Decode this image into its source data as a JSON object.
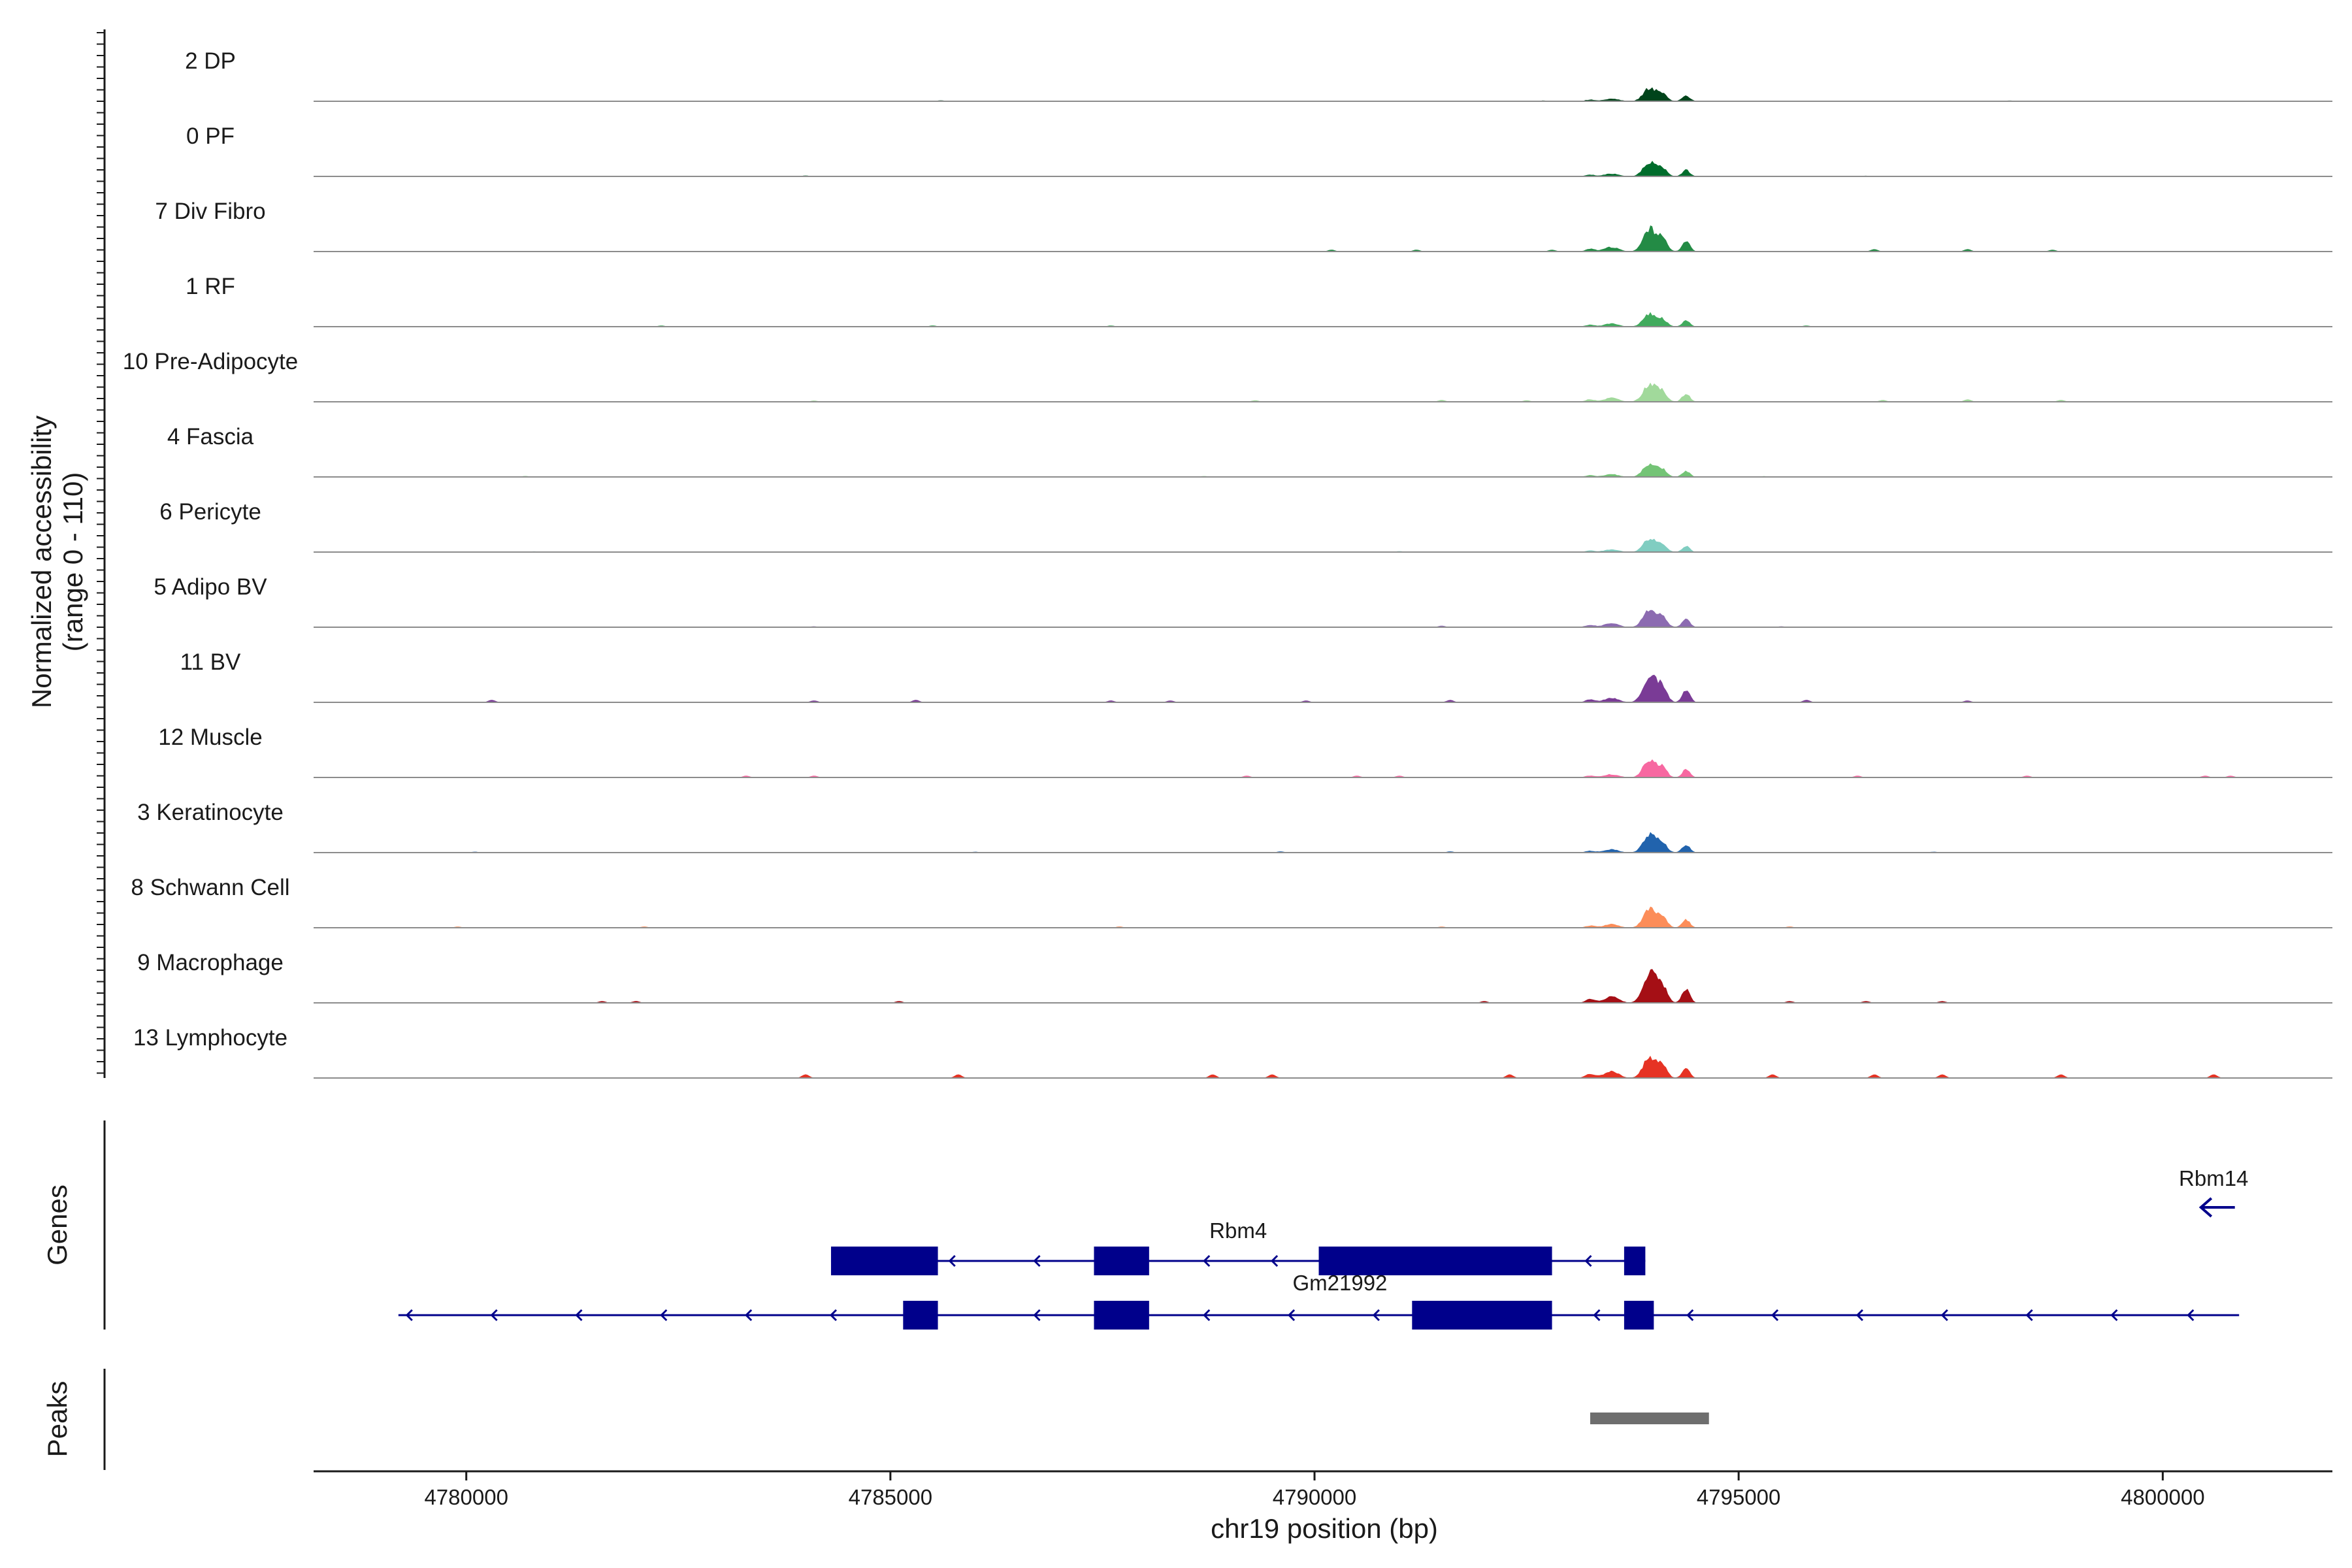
{
  "chart_data": {
    "type": "area",
    "title": "",
    "xlabel": "chr19 position (bp)",
    "ylabel": "Normalized accessibility",
    "ylabel_range": "(range 0 - 110)",
    "yrange": [
      0,
      110
    ],
    "xlim": [
      4778200,
      4802000
    ],
    "x_ticks": [
      4780000,
      4785000,
      4790000,
      4795000,
      4800000
    ],
    "x_tick_labels": [
      "4780000",
      "4785000",
      "4790000",
      "4795000",
      "4800000"
    ],
    "tracks": [
      {
        "name": "2 DP",
        "color": "#00441b",
        "main_peak": 22,
        "side": 6,
        "noise": 0.25,
        "spikes": [
          [
            4785600,
            1.5
          ],
          [
            4792700,
            1.2
          ],
          [
            4798200,
            1.2
          ]
        ]
      },
      {
        "name": "0 PF",
        "color": "#006d2c",
        "main_peak": 24,
        "side": 6,
        "noise": 0.1,
        "spikes": [
          [
            4784000,
            1.5
          ],
          [
            4796500,
            1.2
          ]
        ]
      },
      {
        "name": "7 Div Fibro",
        "color": "#238b45",
        "main_peak": 38,
        "side": 10,
        "noise": 0.15,
        "spikes": [
          [
            4790200,
            3
          ],
          [
            4791200,
            3
          ],
          [
            4792800,
            3
          ],
          [
            4796600,
            4
          ],
          [
            4797700,
            4
          ],
          [
            4798700,
            3
          ]
        ]
      },
      {
        "name": "1 RF",
        "color": "#41ab5d",
        "main_peak": 22,
        "side": 7,
        "noise": 0.1,
        "spikes": [
          [
            4782300,
            2
          ],
          [
            4785500,
            2
          ],
          [
            4787600,
            2
          ],
          [
            4795800,
            2
          ]
        ]
      },
      {
        "name": "10 Pre-Adipocyte",
        "color": "#a1d99b",
        "main_peak": 30,
        "side": 9,
        "noise": 0.12,
        "spikes": [
          [
            4784100,
            2
          ],
          [
            4789300,
            2.5
          ],
          [
            4791500,
            3
          ],
          [
            4792500,
            2.5
          ],
          [
            4796700,
            3
          ],
          [
            4797700,
            4
          ],
          [
            4798800,
            3
          ]
        ]
      },
      {
        "name": "4 Fascia",
        "color": "#74c476",
        "main_peak": 22,
        "side": 6,
        "noise": 0.1,
        "spikes": [
          [
            4780700,
            1.5
          ],
          [
            4788700,
            1.5
          ],
          [
            4795300,
            1.2
          ]
        ]
      },
      {
        "name": "6 Pericyte",
        "color": "#80cdc1",
        "main_peak": 22,
        "side": 6,
        "noise": 0.08,
        "spikes": [
          [
            4780800,
            1.2
          ],
          [
            4791000,
            1.5
          ]
        ]
      },
      {
        "name": "5 Adipo BV",
        "color": "#8c6bb1",
        "main_peak": 30,
        "side": 9,
        "noise": 0.1,
        "spikes": [
          [
            4784100,
            1.5
          ],
          [
            4791500,
            2.5
          ],
          [
            4795500,
            1.5
          ]
        ]
      },
      {
        "name": "11 BV",
        "color": "#7a3b96",
        "main_peak": 46,
        "side": 10,
        "noise": 0.2,
        "spikes": [
          [
            4780300,
            4
          ],
          [
            4784100,
            3
          ],
          [
            4785300,
            4
          ],
          [
            4787600,
            3
          ],
          [
            4788300,
            3
          ],
          [
            4789900,
            3
          ],
          [
            4791600,
            4
          ],
          [
            4795800,
            4
          ],
          [
            4797700,
            3
          ]
        ]
      },
      {
        "name": "12 Muscle",
        "color": "#f768a1",
        "main_peak": 30,
        "side": 7,
        "noise": 0.1,
        "spikes": [
          [
            4783300,
            3
          ],
          [
            4784100,
            3
          ],
          [
            4789200,
            3
          ],
          [
            4790500,
            3
          ],
          [
            4791000,
            3
          ],
          [
            4796400,
            3
          ],
          [
            4798400,
            3
          ],
          [
            4800500,
            3
          ],
          [
            4800800,
            3
          ]
        ]
      },
      {
        "name": "3 Keratinocyte",
        "color": "#2163ad",
        "main_peak": 30,
        "side": 7,
        "noise": 0.15,
        "spikes": [
          [
            4780100,
            1.5
          ],
          [
            4786000,
            1.5
          ],
          [
            4789600,
            2
          ],
          [
            4791600,
            2
          ],
          [
            4797300,
            1.5
          ]
        ]
      },
      {
        "name": "8 Schwann Cell",
        "color": "#fc8d59",
        "main_peak": 32,
        "side": 8,
        "noise": 0.1,
        "spikes": [
          [
            4779900,
            2
          ],
          [
            4782100,
            2
          ],
          [
            4787700,
            2
          ],
          [
            4791500,
            2
          ],
          [
            4795600,
            2
          ]
        ]
      },
      {
        "name": "9 Macrophage",
        "color": "#a50f15",
        "main_peak": 52,
        "side": 14,
        "noise": 0.15,
        "spikes": [
          [
            4781600,
            3
          ],
          [
            4782000,
            3
          ],
          [
            4785100,
            3
          ],
          [
            4792000,
            3
          ],
          [
            4795600,
            3
          ],
          [
            4796500,
            3
          ],
          [
            4797400,
            3
          ]
        ]
      },
      {
        "name": "13 Lymphocyte",
        "color": "#e63324",
        "main_peak": 36,
        "side": 16,
        "noise": 0.2,
        "spikes": [
          [
            4784000,
            6
          ],
          [
            4785800,
            6
          ],
          [
            4788800,
            6
          ],
          [
            4789500,
            6
          ],
          [
            4792300,
            6
          ],
          [
            4795400,
            6
          ],
          [
            4796600,
            6
          ],
          [
            4797400,
            6
          ],
          [
            4798800,
            6
          ],
          [
            4800600,
            6
          ]
        ]
      }
    ],
    "genes_label": "Genes",
    "peaks_label": "Peaks",
    "genes": [
      {
        "name": "Rbm4",
        "label_x": 4789100,
        "row": 0,
        "start": 4784300,
        "end": 4793900,
        "exons": [
          [
            4784300,
            4785560
          ],
          [
            4787400,
            4788050
          ],
          [
            4790050,
            4792800
          ],
          [
            4793650,
            4793900
          ]
        ],
        "chevrons": [
          4785700,
          4786700,
          4788700,
          4789500,
          4793200
        ]
      },
      {
        "name": "Gm21992",
        "label_x": 4790300,
        "row": 1,
        "start": 4779200,
        "end": 4800900,
        "exons": [
          [
            4785150,
            4785560
          ],
          [
            4787400,
            4788050
          ],
          [
            4791150,
            4792800
          ],
          [
            4793650,
            4794000
          ]
        ],
        "chevrons": [
          4779300,
          4780300,
          4781300,
          4782300,
          4783300,
          4784300,
          4786700,
          4788700,
          4789700,
          4790700,
          4793300,
          4794400,
          4795400,
          4796400,
          4797400,
          4798400,
          4799400,
          4800300
        ]
      },
      {
        "name": "Rbm14",
        "label_x": 4800600,
        "row": -1,
        "start": 4800450,
        "end": 4800850,
        "exons": [],
        "chevrons": [
          4800500
        ]
      }
    ],
    "peaks": [
      [
        4793250,
        4794650
      ]
    ],
    "colors": {
      "gene": "#00008b",
      "peak": "#6e6e6e",
      "baseline": "#8c8c8c",
      "axis": "#1a1a1a"
    }
  }
}
